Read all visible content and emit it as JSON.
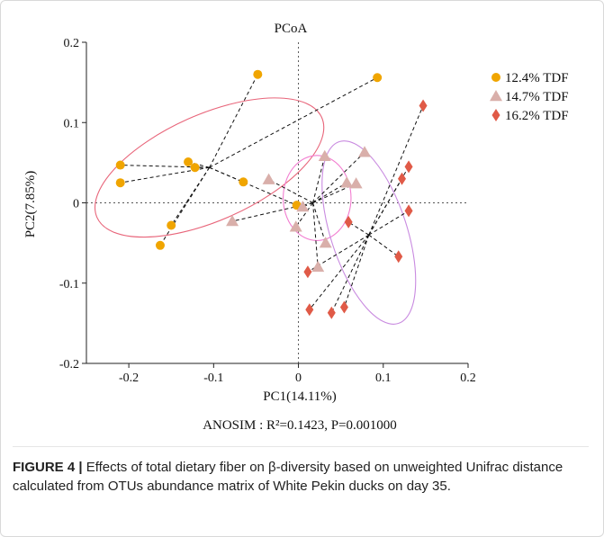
{
  "chart_data": {
    "type": "scatter",
    "title": "PCoA",
    "xlabel": "PC1(14.11%)",
    "ylabel": "PC2(7.85%)",
    "xlim": [
      -0.25,
      0.2
    ],
    "ylim": [
      -0.2,
      0.2
    ],
    "xticks": [
      -0.2,
      -0.1,
      0,
      0.1,
      0.2
    ],
    "xtick_labels": [
      "-0.2",
      "-0.1",
      "0",
      "0.1",
      "0.2"
    ],
    "yticks": [
      -0.2,
      -0.1,
      0,
      0.1,
      0.2
    ],
    "ytick_labels": [
      "-0.2",
      "-0.1",
      "0",
      "0.1",
      "0.2"
    ],
    "annotation": "ANOSIM : R²=0.1423, P=0.001000",
    "reference_lines": {
      "x": 0,
      "y": 0,
      "style": "dotted"
    },
    "legend_position": "right-top",
    "series": [
      {
        "name": "12.4% TDF",
        "marker": "circle",
        "color": "#F0A500",
        "ellipse_color": "#E8657A",
        "centroid": [
          -0.105,
          0.044
        ],
        "ellipse": {
          "cx": -0.105,
          "cy": 0.044,
          "rx": 0.145,
          "ry": 0.066,
          "angle_deg": 24
        },
        "points": [
          [
            -0.048,
            0.16
          ],
          [
            0.093,
            0.156
          ],
          [
            -0.13,
            0.051
          ],
          [
            -0.122,
            0.044
          ],
          [
            -0.21,
            0.047
          ],
          [
            -0.21,
            0.025
          ],
          [
            -0.065,
            0.026
          ],
          [
            -0.002,
            -0.003
          ],
          [
            -0.15,
            -0.028
          ],
          [
            -0.163,
            -0.053
          ]
        ]
      },
      {
        "name": "14.7% TDF",
        "marker": "triangle",
        "color": "#D9AFAA",
        "ellipse_color": "#F27DD0",
        "centroid": [
          0.017,
          0.0
        ],
        "ellipse": {
          "cx": 0.022,
          "cy": 0.006,
          "rx": 0.04,
          "ry": 0.053,
          "angle_deg": 0
        },
        "points": [
          [
            0.078,
            0.063
          ],
          [
            0.031,
            0.058
          ],
          [
            0.057,
            0.025
          ],
          [
            0.068,
            0.024
          ],
          [
            -0.035,
            0.029
          ],
          [
            0.005,
            -0.005
          ],
          [
            -0.078,
            -0.023
          ],
          [
            -0.003,
            -0.03
          ],
          [
            0.032,
            -0.05
          ],
          [
            0.023,
            -0.08
          ]
        ]
      },
      {
        "name": "16.2% TDF",
        "marker": "diamond",
        "color": "#E05A47",
        "ellipse_color": "#C98BE0",
        "centroid": [
          0.083,
          -0.04
        ],
        "ellipse": {
          "cx": 0.083,
          "cy": -0.037,
          "rx": 0.045,
          "ry": 0.119,
          "angle_deg": 18
        },
        "points": [
          [
            0.147,
            0.121
          ],
          [
            0.13,
            0.045
          ],
          [
            0.122,
            0.03
          ],
          [
            0.13,
            -0.01
          ],
          [
            0.059,
            -0.024
          ],
          [
            0.118,
            -0.067
          ],
          [
            0.011,
            -0.086
          ],
          [
            0.013,
            -0.133
          ],
          [
            0.039,
            -0.137
          ],
          [
            0.054,
            -0.13
          ]
        ]
      }
    ]
  },
  "caption": {
    "label": "FIGURE 4 |",
    "text": " Effects of total dietary fiber on β-diversity based on unweighted Unifrac distance calculated from OTUs abundance matrix of White Pekin ducks on day 35."
  }
}
